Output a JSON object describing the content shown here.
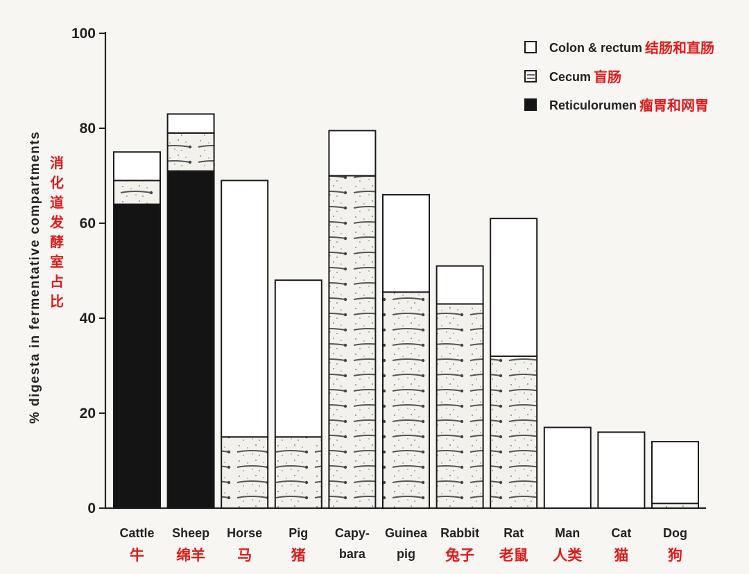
{
  "chart_data": {
    "type": "bar",
    "stacked": true,
    "ylabel": "% digesta in fermentative compartments",
    "ylabel_cn": "消化道发酵室占比",
    "ylim": [
      0,
      100
    ],
    "yticks": [
      "0",
      "20",
      "40",
      "60",
      "80",
      "100"
    ],
    "categories": [
      {
        "lines": [
          "Cattle"
        ],
        "cn": "牛"
      },
      {
        "lines": [
          "Sheep"
        ],
        "cn": "绵羊"
      },
      {
        "lines": [
          "Horse"
        ],
        "cn": "马"
      },
      {
        "lines": [
          "Pig"
        ],
        "cn": "猪"
      },
      {
        "lines": [
          "Capy-",
          "bara"
        ],
        "cn": ""
      },
      {
        "lines": [
          "Guinea",
          "pig"
        ],
        "cn": ""
      },
      {
        "lines": [
          "Rabbit"
        ],
        "cn": "兔子"
      },
      {
        "lines": [
          "Rat"
        ],
        "cn": "老鼠"
      },
      {
        "lines": [
          "Man"
        ],
        "cn": "人类"
      },
      {
        "lines": [
          "Cat"
        ],
        "cn": "猫"
      },
      {
        "lines": [
          "Dog"
        ],
        "cn": "狗"
      }
    ],
    "series": [
      {
        "name": "Reticulorumen",
        "name_cn": "瘤胃和网胃",
        "fill": "#141414",
        "values": [
          64,
          71,
          0,
          0,
          0,
          0,
          0,
          0,
          0,
          0,
          0
        ]
      },
      {
        "name": "Cecum",
        "name_cn": "盲肠",
        "fill": "pattern",
        "values": [
          5,
          8,
          15,
          15,
          70,
          45.5,
          43,
          32,
          0,
          0,
          1
        ]
      },
      {
        "name": "Colon & rectum",
        "name_cn": "结肠和直肠",
        "fill": "#ffffff",
        "values": [
          6,
          4,
          54,
          33,
          9.5,
          20.5,
          8,
          29,
          17,
          16,
          13
        ]
      }
    ],
    "legend": {
      "position": "top-right",
      "entries": [
        {
          "label": "Colon & rectum",
          "cn": "结肠和直肠",
          "icon": "empty"
        },
        {
          "label": "Cecum",
          "cn": "盲肠",
          "icon": "striped"
        },
        {
          "label": "Reticulorumen",
          "cn": "瘤胃和网胃",
          "icon": "solid"
        }
      ]
    }
  }
}
